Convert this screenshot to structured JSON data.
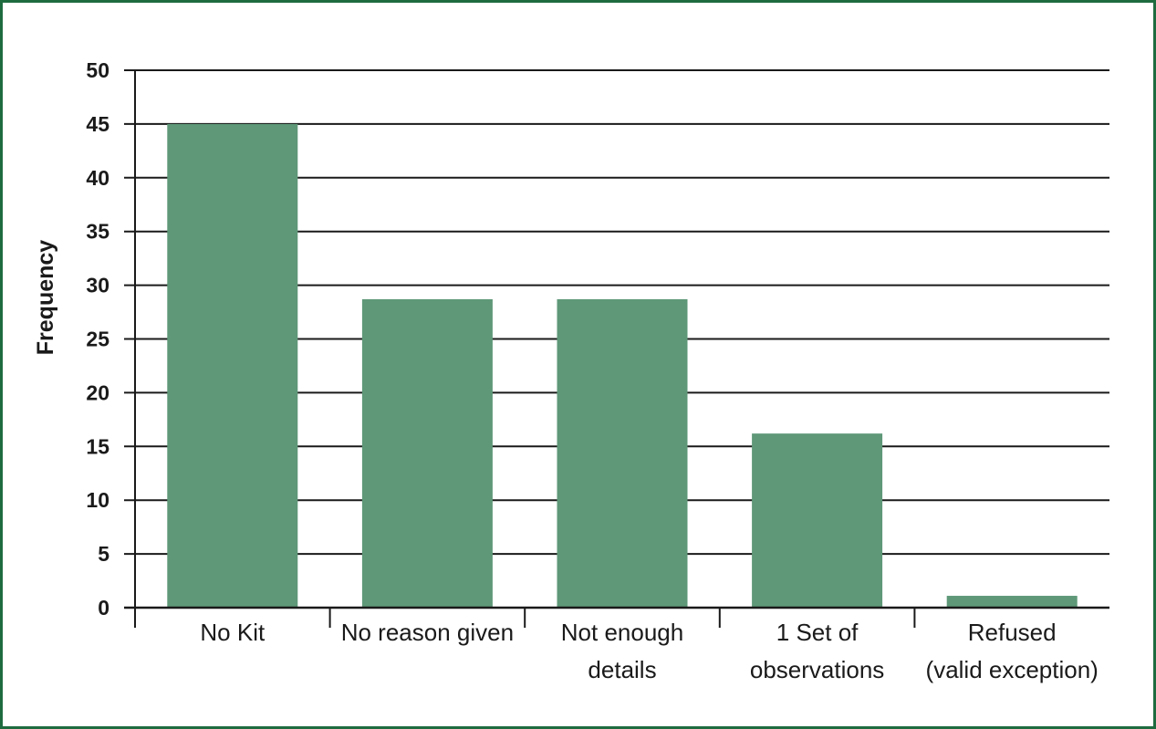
{
  "chart_data": {
    "type": "bar",
    "title": "",
    "xlabel": "",
    "ylabel": "Frequency",
    "ylim": [
      0,
      50
    ],
    "yticks": [
      0,
      5,
      10,
      15,
      20,
      25,
      30,
      35,
      40,
      45,
      50
    ],
    "categories": [
      [
        "No Kit"
      ],
      [
        "No reason given"
      ],
      [
        "Not enough",
        "details"
      ],
      [
        "1 Set of",
        "observations"
      ],
      [
        "Refused",
        "(valid exception)"
      ]
    ],
    "values": [
      45,
      28.7,
      28.7,
      16.2,
      1.1
    ],
    "grid": true,
    "legend": "none",
    "colors": {
      "bar": "#5e9878",
      "frame": "#1f6b40",
      "gridline": "#1a1a1a",
      "text": "#1a1a1a"
    }
  }
}
